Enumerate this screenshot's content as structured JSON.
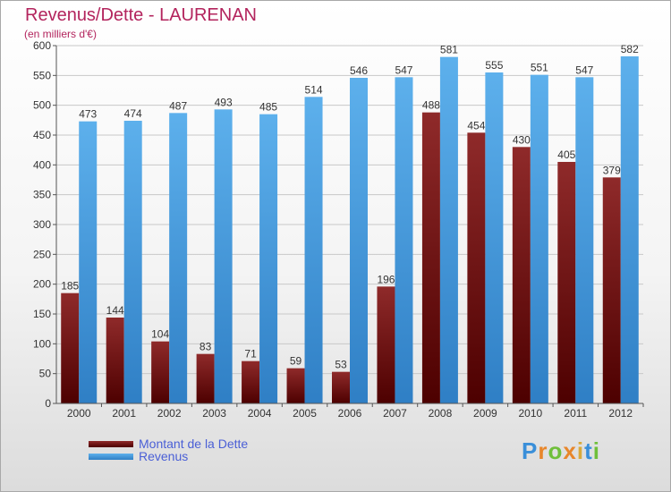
{
  "header": {
    "title": "Revenus/Dette - LAURENAN",
    "subtitle": "(en milliers d'€)"
  },
  "legend": [
    {
      "label": "Montant de la Dette",
      "color": "#8b1a1a"
    },
    {
      "label": "Revenus",
      "color": "#4ba4e8"
    }
  ],
  "logo": {
    "text": "Proxiti"
  },
  "colors": {
    "title": "#b3245d",
    "debt_top": "#8f2a2a",
    "debt_bottom": "#4d0000",
    "revenue_top": "#5db0ec",
    "revenue_bottom": "#2f7fc5",
    "legend_text": "#4a5fd6"
  },
  "chart_data": {
    "type": "bar",
    "title": "Revenus/Dette - LAURENAN",
    "subtitle": "(en milliers d'€)",
    "categories": [
      "2000",
      "2001",
      "2002",
      "2003",
      "2004",
      "2005",
      "2006",
      "2007",
      "2008",
      "2009",
      "2010",
      "2011",
      "2012"
    ],
    "series": [
      {
        "name": "Montant de la Dette",
        "values": [
          185,
          144,
          104,
          83,
          71,
          59,
          53,
          196,
          488,
          454,
          430,
          405,
          379
        ]
      },
      {
        "name": "Revenus",
        "values": [
          473,
          474,
          487,
          493,
          485,
          514,
          546,
          547,
          581,
          555,
          551,
          547,
          582
        ]
      }
    ],
    "ylim": [
      0,
      600
    ],
    "yticks": [
      0,
      50,
      100,
      150,
      200,
      250,
      300,
      350,
      400,
      450,
      500,
      550,
      600
    ],
    "grid": true,
    "legend_position": "bottom-left"
  }
}
